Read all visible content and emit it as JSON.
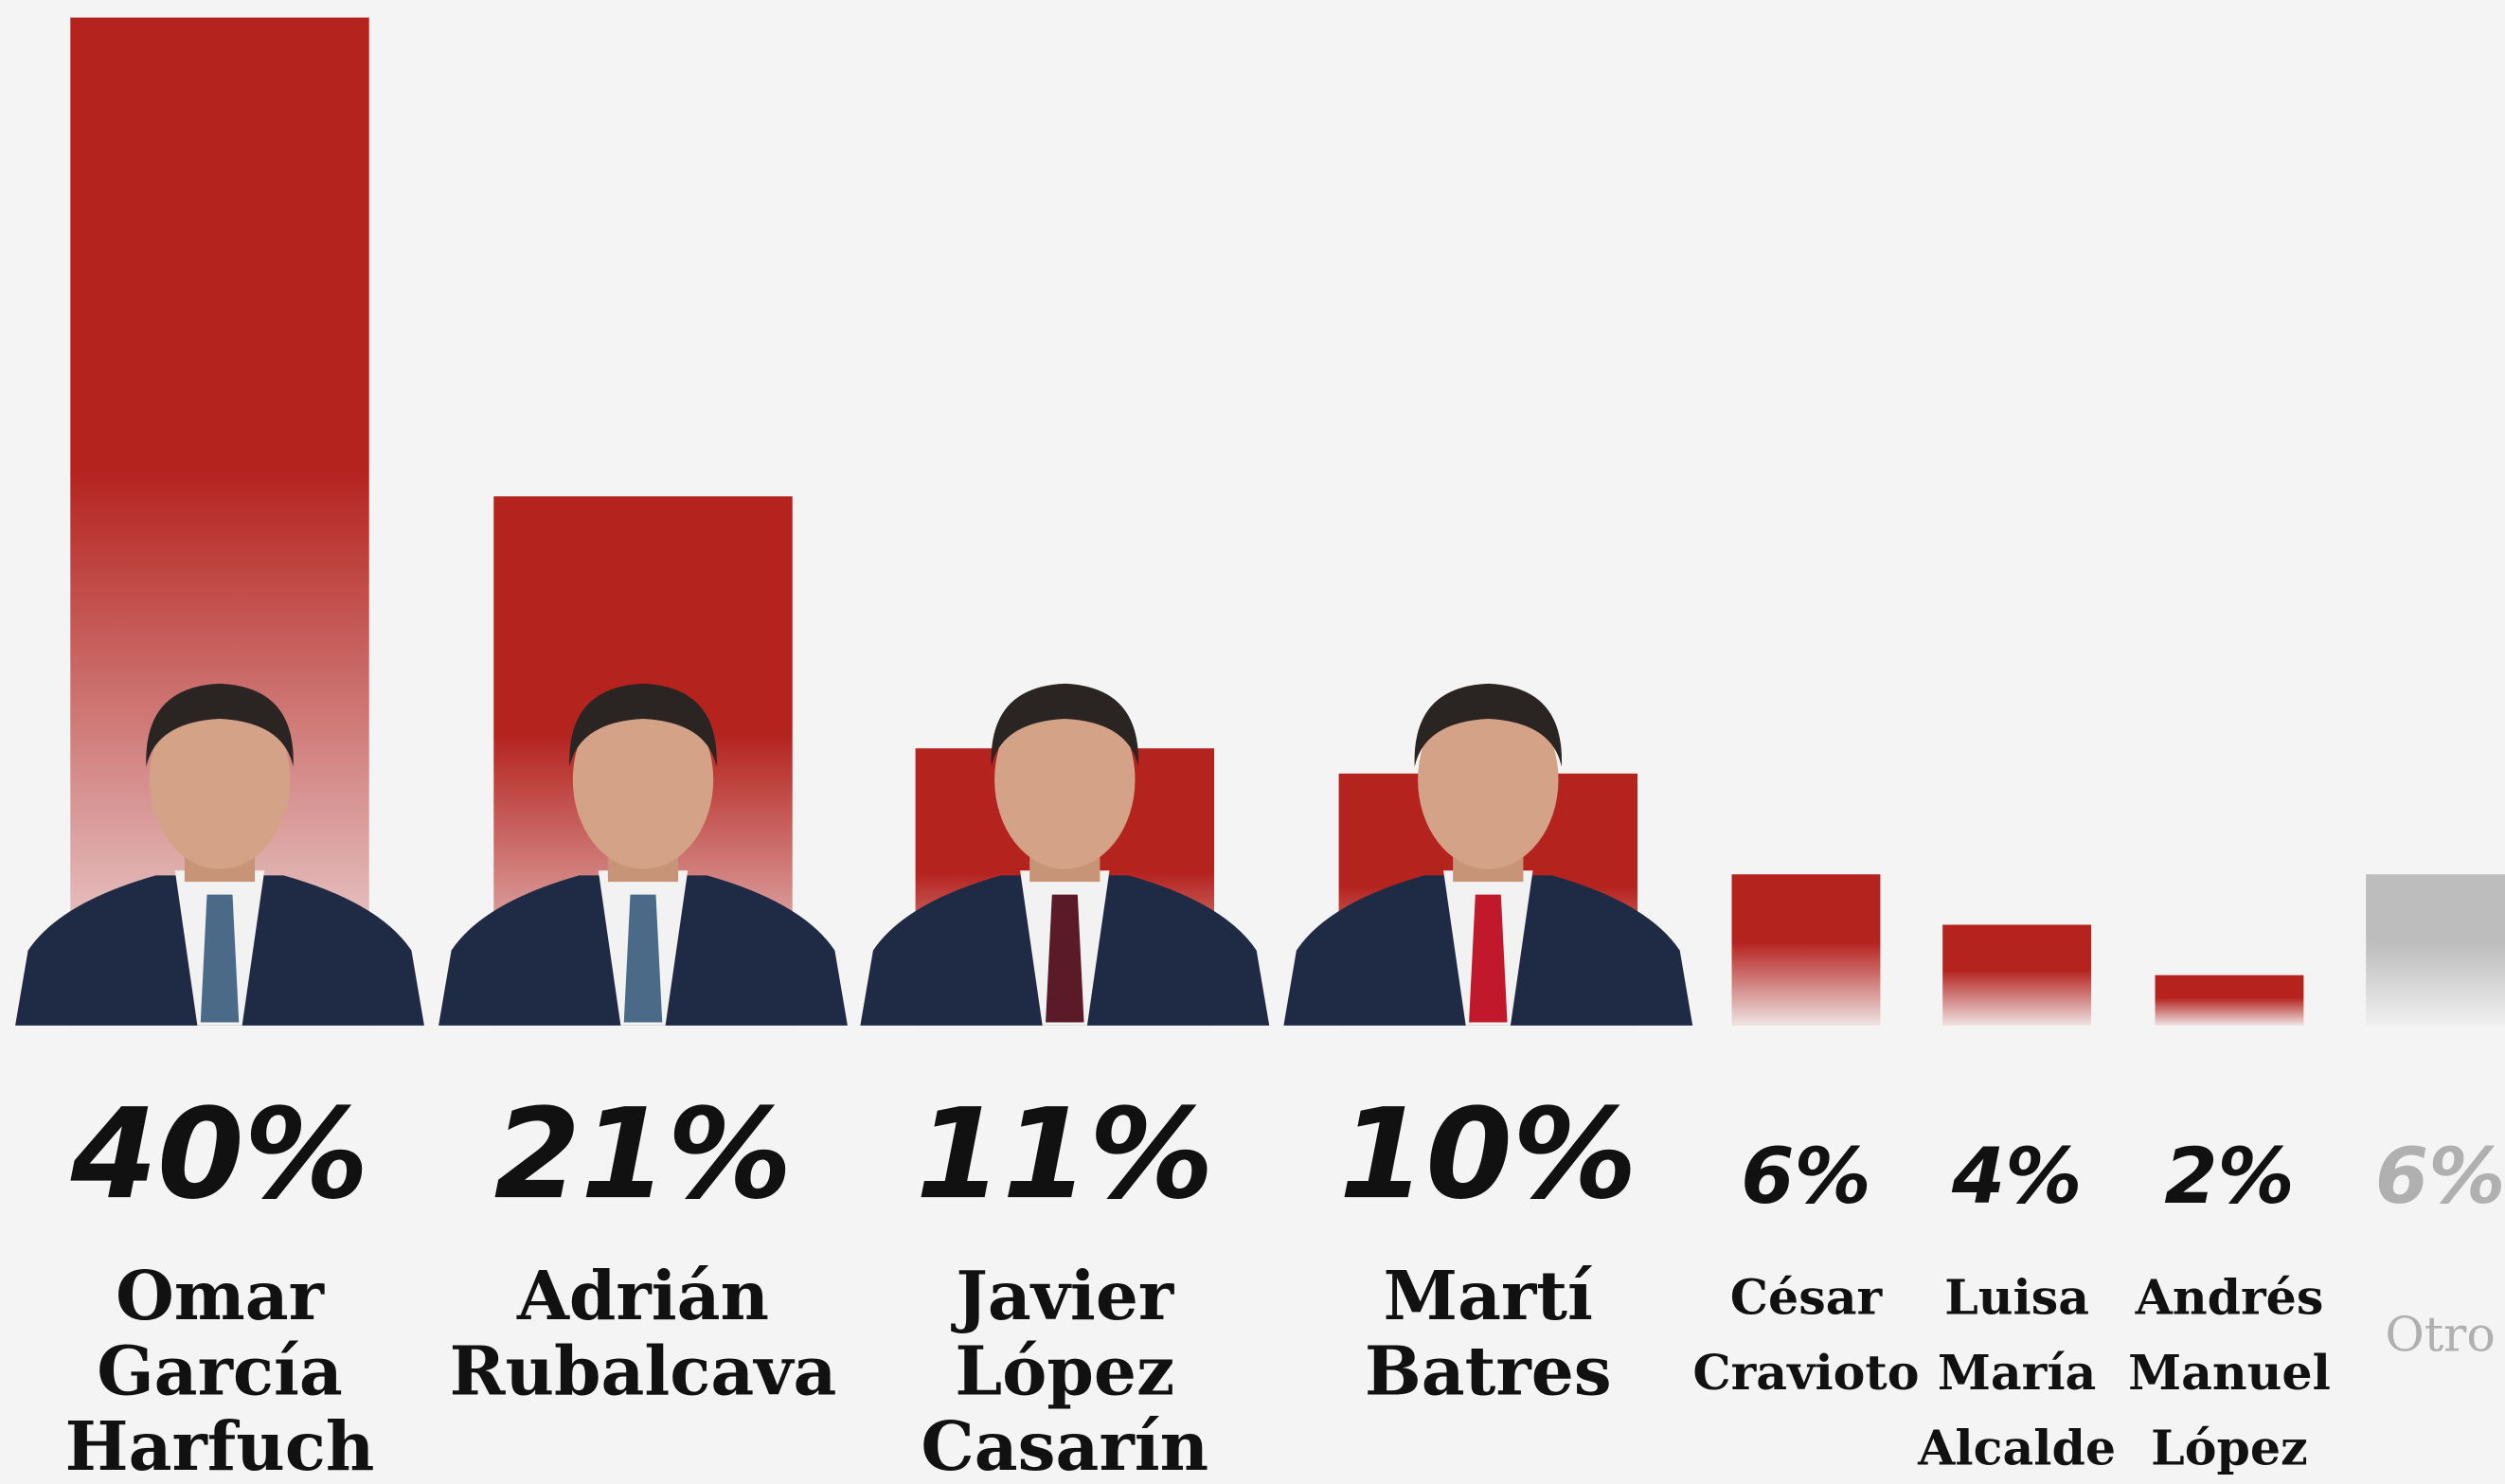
{
  "chart_data": {
    "type": "bar",
    "categories": [
      [
        "Omar",
        "García",
        "Harfuch"
      ],
      [
        "Adrián",
        "Rubalcava"
      ],
      [
        "Javier",
        "López",
        "Casarín"
      ],
      [
        "Martí",
        "Batres"
      ],
      [
        "César",
        "Cravioto"
      ],
      [
        "Luisa",
        "María",
        "Alcalde"
      ],
      [
        "Andrés",
        "Manuel",
        "López"
      ],
      [
        "Otro"
      ]
    ],
    "values": [
      40,
      21,
      11,
      10,
      6,
      4,
      2,
      6
    ],
    "value_labels": [
      "40%",
      "21%",
      "11%",
      "10%",
      "6%",
      "4%",
      "2%",
      "6%"
    ],
    "colors": [
      "#b5231f",
      "#b5231f",
      "#b5231f",
      "#b5231f",
      "#b5231f",
      "#b5231f",
      "#b5231f",
      "#bdbdbd"
    ],
    "ylim": [
      0,
      40
    ]
  }
}
